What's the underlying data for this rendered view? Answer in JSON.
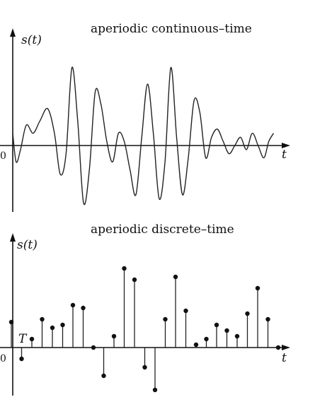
{
  "panels": {
    "continuous": {
      "title": "aperiodic continuous–time",
      "y_label": "s(t)",
      "x_label": "t",
      "origin_label": "0"
    },
    "discrete": {
      "title": "aperiodic discrete–time",
      "y_label": "s(t)",
      "x_label": "t",
      "origin_label": "0",
      "period_label": "T"
    }
  },
  "chart_data": [
    {
      "type": "line",
      "title": "aperiodic continuous–time",
      "ylabel": "s(t)",
      "xlabel": "t",
      "x": [
        0,
        0.35,
        0.8,
        1.4,
        2.1,
        2.8,
        3.6,
        4.3,
        4.9,
        5.5,
        6.1,
        6.7,
        7.3,
        7.9,
        8.5,
        9.1,
        9.7,
        10.3,
        10.9,
        11.5,
        12.1,
        12.7,
        13.3,
        13.9,
        14.5,
        15.1,
        15.7,
        16.3,
        16.9,
        17.5,
        18.1,
        18.7,
        19.3,
        19.9,
        20.5,
        21.1,
        21.7,
        22.3,
        22.9,
        23.5,
        24.1,
        24.7,
        25.3,
        25.9,
        26.4,
        26.9
      ],
      "y": [
        0.3,
        -0.4,
        -0.1,
        0.5,
        0.3,
        0.6,
        0.9,
        0.3,
        -0.7,
        -0.2,
        1.9,
        0.6,
        -1.4,
        -0.6,
        1.3,
        1.0,
        0.1,
        -0.4,
        0.3,
        0.1,
        -0.6,
        -1.2,
        0.2,
        1.5,
        0.3,
        -1.3,
        -0.4,
        1.9,
        0.2,
        -1.2,
        -0.3,
        1.1,
        0.8,
        -0.3,
        0.2,
        0.4,
        0.1,
        -0.2,
        0.0,
        0.2,
        -0.1,
        0.3,
        0.0,
        -0.3,
        0.1,
        0.3
      ]
    },
    {
      "type": "scatter",
      "title": "aperiodic discrete–time",
      "ylabel": "s(t)",
      "xlabel": "t",
      "x": [
        0,
        1,
        2,
        3,
        4,
        5,
        6,
        7,
        8,
        9,
        10,
        11,
        12,
        13,
        14,
        15,
        16,
        17,
        18,
        19,
        20,
        21,
        22,
        23,
        24,
        25,
        26
      ],
      "y": [
        0.9,
        -0.4,
        0.3,
        1.0,
        0.7,
        0.8,
        1.5,
        1.4,
        0.0,
        -1.0,
        0.4,
        2.8,
        2.4,
        -0.7,
        -1.5,
        1.0,
        2.5,
        1.3,
        0.1,
        0.3,
        0.8,
        0.6,
        0.4,
        1.2,
        2.1,
        1.0,
        0.0
      ]
    }
  ],
  "colors": {
    "ink": "#111111"
  }
}
